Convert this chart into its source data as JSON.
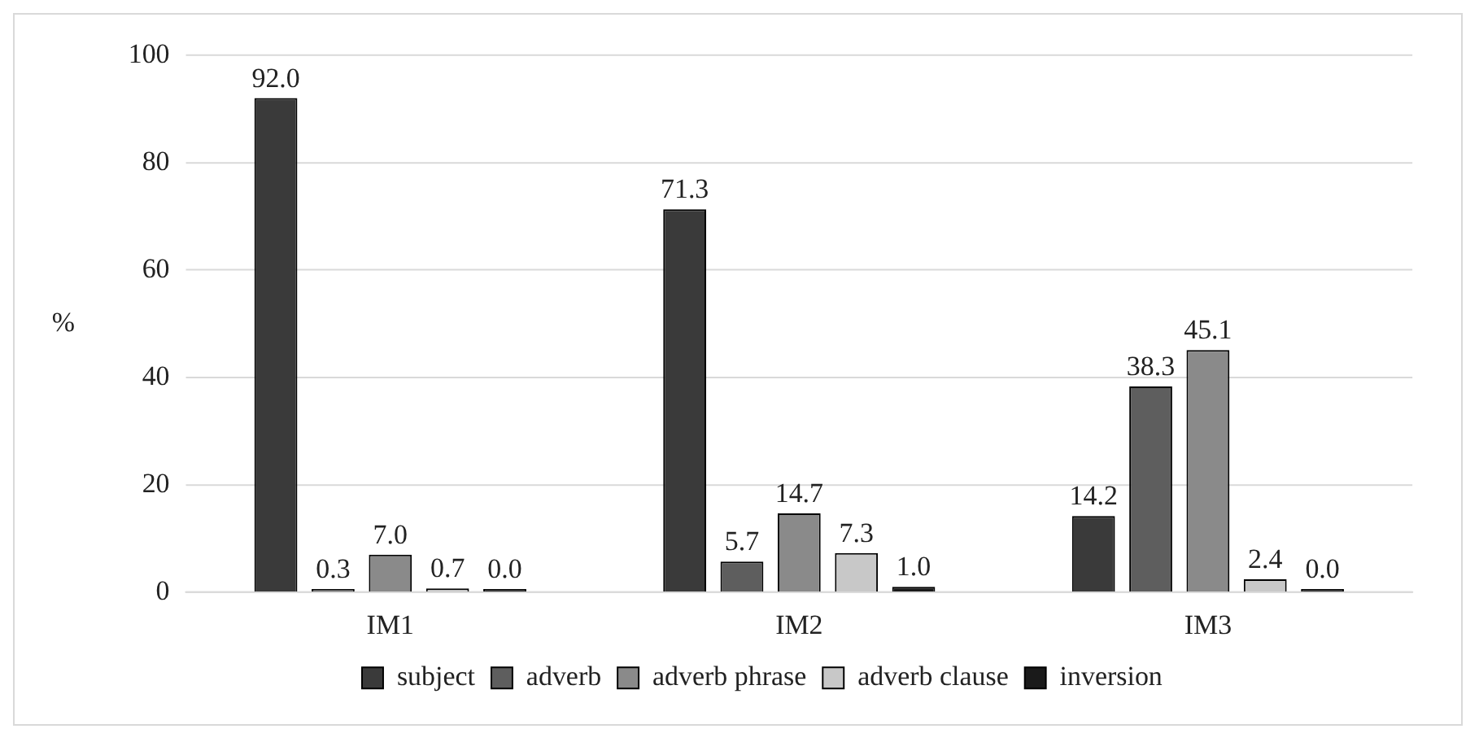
{
  "chart_data": {
    "type": "bar",
    "ylabel": "%",
    "categories": [
      "IM1",
      "IM2",
      "IM3"
    ],
    "series": [
      {
        "name": "subject",
        "color": "#3a3a3a",
        "values": [
          92.0,
          71.3,
          14.2
        ],
        "value_labels": [
          "92.0",
          "71.3",
          "14.2"
        ]
      },
      {
        "name": "adverb",
        "color": "#5e5e5e",
        "values": [
          0.3,
          5.7,
          38.3
        ],
        "value_labels": [
          "0.3",
          "5.7",
          "38.3"
        ]
      },
      {
        "name": "adverb phrase",
        "color": "#8a8a8a",
        "values": [
          7.0,
          14.7,
          45.1
        ],
        "value_labels": [
          "7.0",
          "14.7",
          "45.1"
        ]
      },
      {
        "name": "adverb clause",
        "color": "#c8c8c8",
        "values": [
          0.7,
          7.3,
          2.4
        ],
        "value_labels": [
          "0.7",
          "7.3",
          "2.4"
        ]
      },
      {
        "name": "inversion",
        "color": "#1a1a1a",
        "values": [
          0.0,
          1.0,
          0.0
        ],
        "value_labels": [
          "0.0",
          "1.0",
          "0.0"
        ]
      }
    ],
    "ylim": [
      0,
      100
    ],
    "yticks": [
      0,
      20,
      40,
      60,
      80,
      100
    ],
    "grid": "y",
    "legend": "bottom"
  }
}
